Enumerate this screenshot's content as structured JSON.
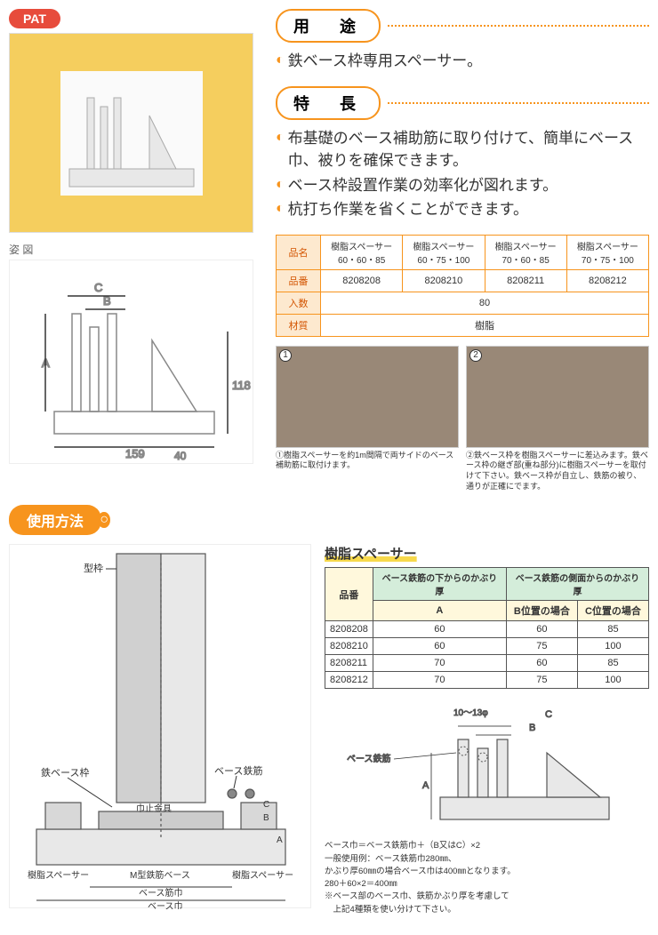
{
  "badge": "PAT",
  "sections": {
    "usage_hdr": "用　途",
    "feature_hdr": "特　長",
    "method_hdr": "使用方法"
  },
  "usage_text": "鉄ベース枠専用スペーサー。",
  "features": [
    "布基礎のベース補助筋に取り付けて、簡単にベース巾、被りを確保できます。",
    "ベース枠設置作業の効率化が図れます。",
    "杭打ち作業を省くことができます。"
  ],
  "diagram_label": "姿 図",
  "diagram_dims": {
    "width": "159",
    "height": "118",
    "depth": "40",
    "labelA": "A",
    "labelB": "B",
    "labelC": "C"
  },
  "spec_table": {
    "row_labels": [
      "品名",
      "品番",
      "入数",
      "材質"
    ],
    "products": [
      {
        "name": "樹脂スペーサー\n60・60・85",
        "code": "8208208"
      },
      {
        "name": "樹脂スペーサー\n60・75・100",
        "code": "8208210"
      },
      {
        "name": "樹脂スペーサー\n70・60・85",
        "code": "8208211"
      },
      {
        "name": "樹脂スペーサー\n70・75・100",
        "code": "8208212"
      }
    ],
    "qty": "80",
    "material": "樹脂"
  },
  "photos": [
    {
      "num": "1",
      "cap": "①樹脂スペーサーを約1m間隔で両サイドのベース補助筋に取付けます。"
    },
    {
      "num": "2",
      "cap": "②鉄ベース枠を樹脂スペーサーに差込みます。鉄ベース枠の継ぎ部(重ね部分)に樹脂スペーサーを取付けて下さい。鉄ベース枠が自立し、鉄筋の被り、通りが正確にでます。"
    }
  ],
  "usage_labels": {
    "katawaku": "型枠",
    "tetsu_base": "鉄ベース枠",
    "habadome": "巾止金具",
    "base_tekkin": "ベース鉄筋",
    "jushi_spacer": "樹脂スペーサー",
    "m_type": "M型鉄筋ベース",
    "base_kinhaba": "ベース筋巾",
    "base_haba": "ベース巾"
  },
  "dim_section_title": "樹脂スペーサー",
  "dim_table": {
    "grp1": "ベース鉄筋の下からのかぶり厚",
    "grp2": "ベース鉄筋の側面からのかぶり厚",
    "cols": [
      "品番",
      "A",
      "B位置の場合",
      "C位置の場合"
    ],
    "rows": [
      [
        "8208208",
        "60",
        "60",
        "85"
      ],
      [
        "8208210",
        "60",
        "75",
        "100"
      ],
      [
        "8208211",
        "70",
        "60",
        "85"
      ],
      [
        "8208212",
        "70",
        "75",
        "100"
      ]
    ]
  },
  "small_diag": {
    "rebar": "10～13φ",
    "base_tekkin": "ベース鉄筋",
    "A": "A",
    "B": "B",
    "C": "C"
  },
  "notes": [
    "ベース巾＝ベース鉄筋巾＋（B又はC）×2",
    "一般使用例：ベース鉄筋巾280㎜、",
    "かぶり厚60㎜の場合ベース巾は400㎜となります。",
    "280＋60×2＝400㎜",
    "※ベース部のベース巾、鉄筋かぶり厚を考慮して",
    "　上記4種類を使い分けて下さい。"
  ],
  "colors": {
    "accent": "#f7941d",
    "badge": "#e74c3c",
    "photo_bg": "#f5ce5e",
    "table_header": "#fde9cf",
    "dim_green": "#d4edda",
    "dim_yellow": "#fff8dc"
  }
}
